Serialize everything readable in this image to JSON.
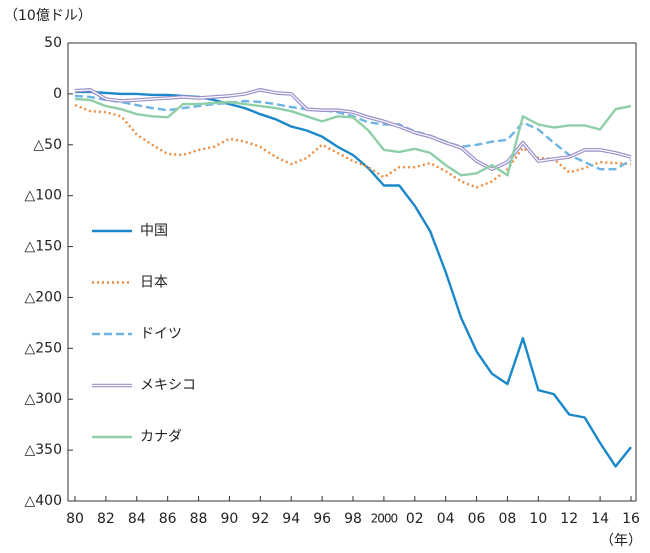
{
  "chart_data": {
    "type": "line",
    "y_unit_label": "（10億ドル）",
    "x_unit_label": "（年）",
    "x": [
      1980,
      1981,
      1982,
      1983,
      1984,
      1985,
      1986,
      1987,
      1988,
      1989,
      1990,
      1991,
      1992,
      1993,
      1994,
      1995,
      1996,
      1997,
      1998,
      1999,
      2000,
      2001,
      2002,
      2003,
      2004,
      2005,
      2006,
      2007,
      2008,
      2009,
      2010,
      2011,
      2012,
      2013,
      2014,
      2015,
      2016
    ],
    "xlim": [
      1980,
      2016
    ],
    "xticks": [
      {
        "value": 1980,
        "label": "80"
      },
      {
        "value": 1982,
        "label": "82"
      },
      {
        "value": 1984,
        "label": "84"
      },
      {
        "value": 1986,
        "label": "86"
      },
      {
        "value": 1988,
        "label": "88"
      },
      {
        "value": 1990,
        "label": "90"
      },
      {
        "value": 1992,
        "label": "92"
      },
      {
        "value": 1994,
        "label": "94"
      },
      {
        "value": 1996,
        "label": "96"
      },
      {
        "value": 1998,
        "label": "98"
      },
      2000,
      {
        "value": 2002,
        "label": "02"
      },
      {
        "value": 2004,
        "label": "04"
      },
      {
        "value": 2006,
        "label": "06"
      },
      {
        "value": 2008,
        "label": "08"
      },
      {
        "value": 2010,
        "label": "10"
      },
      {
        "value": 2012,
        "label": "12"
      },
      {
        "value": 2014,
        "label": "14"
      },
      {
        "value": 2016,
        "label": "16"
      }
    ],
    "ylim": [
      -400,
      50
    ],
    "yticks": [
      50,
      0,
      {
        "value": -50,
        "label": "△50"
      },
      {
        "value": -100,
        "label": "△100"
      },
      {
        "value": -150,
        "label": "△150"
      },
      {
        "value": -200,
        "label": "△200"
      },
      {
        "value": -250,
        "label": "△250"
      },
      {
        "value": -300,
        "label": "△300"
      },
      {
        "value": -350,
        "label": "△350"
      },
      {
        "value": -400,
        "label": "△400"
      }
    ],
    "grid": false,
    "legend": "left",
    "series": [
      {
        "name": "中国",
        "color": "#1a87c9",
        "style": "solid",
        "values": [
          2,
          2,
          1,
          0,
          0,
          -1,
          -1,
          -2,
          -3,
          -6,
          -10,
          -14,
          -20,
          -25,
          -32,
          -36,
          -42,
          -52,
          -60,
          -73,
          -90,
          -90,
          -110,
          -135,
          -175,
          -220,
          -253,
          -275,
          -285,
          -240,
          -291,
          -295,
          -315,
          -318,
          -343,
          -366,
          -347
        ]
      },
      {
        "name": "日本",
        "color": "#ee8a3c",
        "style": "dotted",
        "values": [
          -11,
          -17,
          -18,
          -22,
          -40,
          -50,
          -59,
          -60,
          -55,
          -52,
          -44,
          -47,
          -52,
          -62,
          -69,
          -63,
          -50,
          -58,
          -66,
          -72,
          -82,
          -72,
          -72,
          -68,
          -76,
          -86,
          -92,
          -86,
          -74,
          -53,
          -63,
          -64,
          -77,
          -73,
          -67,
          -68,
          -69
        ]
      },
      {
        "name": "ドイツ",
        "color": "#6eb4e4",
        "style": "dashed",
        "values": [
          -2,
          -3,
          -6,
          -8,
          -11,
          -14,
          -16,
          -14,
          -12,
          -10,
          -9,
          -7,
          -8,
          -10,
          -13,
          -15,
          -16,
          -18,
          -22,
          -28,
          -30,
          -30,
          -37,
          -41,
          -47,
          -52,
          -50,
          -47,
          -45,
          -28,
          -35,
          -48,
          -60,
          -67,
          -74,
          -74,
          -65
        ]
      },
      {
        "name": "メキシコ",
        "color": "#9a8fcc",
        "style": "double",
        "values": [
          3,
          4,
          -5,
          -7,
          -6,
          -5,
          -4,
          -3,
          -4,
          -3,
          -2,
          0,
          4,
          1,
          0,
          -15,
          -16,
          -16,
          -18,
          -23,
          -27,
          -32,
          -38,
          -42,
          -48,
          -53,
          -66,
          -74,
          -67,
          -48,
          -66,
          -64,
          -62,
          -55,
          -55,
          -58,
          -62
        ]
      },
      {
        "name": "カナダ",
        "color": "#8fcfa8",
        "style": "solid",
        "values": [
          -5,
          -6,
          -12,
          -15,
          -20,
          -22,
          -23,
          -10,
          -10,
          -9,
          -8,
          -10,
          -12,
          -14,
          -17,
          -22,
          -27,
          -22,
          -23,
          -36,
          -55,
          -57,
          -54,
          -58,
          -70,
          -80,
          -78,
          -70,
          -80,
          -22,
          -30,
          -33,
          -31,
          -31,
          -35,
          -15,
          -12
        ]
      }
    ]
  }
}
